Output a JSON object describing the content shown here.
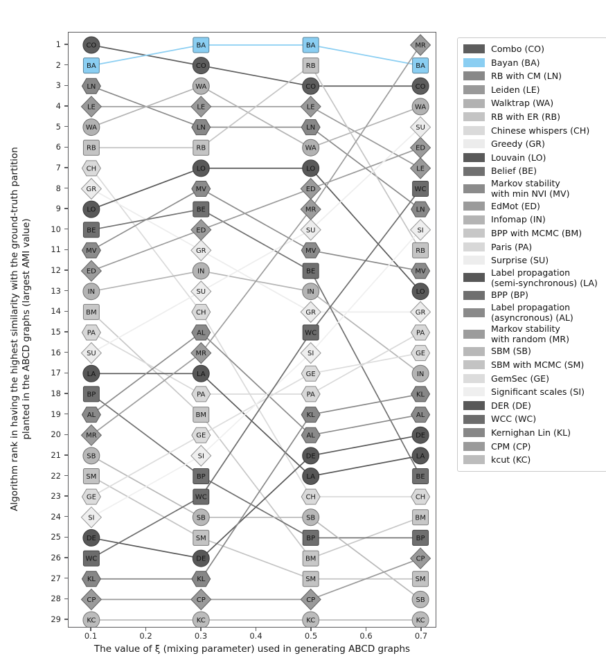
{
  "axes": {
    "xlabel": "The value of ξ (mixing parameter) used in generating ABCD graphs",
    "ylabel_line1": "Algorithm rank in having the highest similarity with the ground-truth partition",
    "ylabel_line2": "planted in the ABCD graphs (largest AMI value)",
    "xticks": [
      "0.1",
      "0.2",
      "0.3",
      "0.4",
      "0.5",
      "0.6",
      "0.7"
    ],
    "yticks": [
      "1",
      "2",
      "3",
      "4",
      "5",
      "6",
      "7",
      "8",
      "9",
      "10",
      "11",
      "12",
      "13",
      "14",
      "15",
      "16",
      "17",
      "18",
      "19",
      "20",
      "21",
      "22",
      "23",
      "24",
      "25",
      "26",
      "27",
      "28",
      "29"
    ]
  },
  "chart_data": {
    "type": "line",
    "subtype": "bump-rank-chart",
    "title": "",
    "x": [
      0.1,
      0.3,
      0.5,
      0.7
    ],
    "y_axis": "rank (1 at top, 29 at bottom, inverted axis)",
    "ylim": [
      1,
      29
    ],
    "grid": false,
    "legend_position": "outside right",
    "marker_text_color": "#101010",
    "highlight_color": "#8acef2",
    "series": [
      {
        "name": "Combo (CO)",
        "code": "CO",
        "shape": "circle",
        "color": "#5d5d5d",
        "ranks": [
          1,
          2,
          3,
          3
        ]
      },
      {
        "name": "Bayan (BA)",
        "code": "BA",
        "shape": "square",
        "color": "#8acef2",
        "ranks": [
          2,
          1,
          1,
          2
        ]
      },
      {
        "name": "RB with CM (LN)",
        "code": "LN",
        "shape": "hexagon",
        "color": "#888888",
        "ranks": [
          3,
          5,
          5,
          9
        ]
      },
      {
        "name": "Leiden (LE)",
        "code": "LE",
        "shape": "diamond",
        "color": "#999999",
        "ranks": [
          4,
          4,
          4,
          7
        ]
      },
      {
        "name": "Walktrap (WA)",
        "code": "WA",
        "shape": "circle",
        "color": "#b2b2b2",
        "ranks": [
          5,
          3,
          6,
          4
        ]
      },
      {
        "name": "RB with ER (RB)",
        "code": "RB",
        "shape": "square",
        "color": "#c4c4c4",
        "ranks": [
          6,
          6,
          2,
          11
        ]
      },
      {
        "name": "Chinese whispers (CH)",
        "code": "CH",
        "shape": "hexagon",
        "color": "#dadada",
        "ranks": [
          7,
          14,
          23,
          23
        ]
      },
      {
        "name": "Greedy (GR)",
        "code": "GR",
        "shape": "diamond",
        "color": "#ececec",
        "ranks": [
          8,
          11,
          14,
          14
        ]
      },
      {
        "name": "Louvain (LO)",
        "code": "LO",
        "shape": "circle",
        "color": "#595959",
        "ranks": [
          9,
          7,
          7,
          13
        ]
      },
      {
        "name": "Belief (BE)",
        "code": "BE",
        "shape": "square",
        "color": "#707070",
        "ranks": [
          10,
          9,
          12,
          22
        ]
      },
      {
        "name": "Markov stability\nwith min NVI (MV)",
        "code": "MV",
        "shape": "hexagon",
        "color": "#8b8b8b",
        "ranks": [
          11,
          8,
          11,
          12
        ]
      },
      {
        "name": "EdMot (ED)",
        "code": "ED",
        "shape": "diamond",
        "color": "#9b9b9b",
        "ranks": [
          12,
          10,
          8,
          6
        ]
      },
      {
        "name": "Infomap (IN)",
        "code": "IN",
        "shape": "circle",
        "color": "#b4b4b4",
        "ranks": [
          13,
          12,
          13,
          17
        ]
      },
      {
        "name": "BPP with MCMC (BM)",
        "code": "BM",
        "shape": "square",
        "color": "#c7c7c7",
        "ranks": [
          14,
          19,
          26,
          24
        ]
      },
      {
        "name": "Paris (PA)",
        "code": "PA",
        "shape": "hexagon",
        "color": "#d8d8d8",
        "ranks": [
          15,
          18,
          18,
          15
        ]
      },
      {
        "name": "Surprise (SU)",
        "code": "SU",
        "shape": "diamond",
        "color": "#ededed",
        "ranks": [
          16,
          13,
          10,
          5
        ]
      },
      {
        "name": "Label propagation\n(semi-synchronous) (LA)",
        "code": "LA",
        "shape": "circle",
        "color": "#575757",
        "ranks": [
          17,
          17,
          22,
          21
        ]
      },
      {
        "name": "BPP (BP)",
        "code": "BP",
        "shape": "square",
        "color": "#6f6f6f",
        "ranks": [
          18,
          22,
          25,
          25
        ]
      },
      {
        "name": "Label propagation\n(asyncronous) (AL)",
        "code": "AL",
        "shape": "hexagon",
        "color": "#8a8a8a",
        "ranks": [
          19,
          15,
          20,
          19
        ]
      },
      {
        "name": "Markov stability\nwith random (MR)",
        "code": "MR",
        "shape": "diamond",
        "color": "#9c9c9c",
        "ranks": [
          20,
          16,
          9,
          1
        ]
      },
      {
        "name": "SBM (SB)",
        "code": "SB",
        "shape": "circle",
        "color": "#b8b8b8",
        "ranks": [
          21,
          24,
          24,
          28
        ]
      },
      {
        "name": "SBM with MCMC (SM)",
        "code": "SM",
        "shape": "square",
        "color": "#c3c3c3",
        "ranks": [
          22,
          25,
          27,
          27
        ]
      },
      {
        "name": "GemSec (GE)",
        "code": "GE",
        "shape": "hexagon",
        "color": "#dcdcdc",
        "ranks": [
          23,
          20,
          17,
          16
        ]
      },
      {
        "name": "Significant scales (SI)",
        "code": "SI",
        "shape": "diamond",
        "color": "#efefef",
        "ranks": [
          24,
          21,
          16,
          10
        ]
      },
      {
        "name": "DER (DE)",
        "code": "DE",
        "shape": "circle",
        "color": "#585858",
        "ranks": [
          25,
          26,
          21,
          20
        ]
      },
      {
        "name": "WCC (WC)",
        "code": "WC",
        "shape": "square",
        "color": "#6c6c6c",
        "ranks": [
          26,
          23,
          15,
          8
        ]
      },
      {
        "name": "Kernighan Lin (KL)",
        "code": "KL",
        "shape": "hexagon",
        "color": "#878787",
        "ranks": [
          27,
          27,
          19,
          18
        ]
      },
      {
        "name": "CPM (CP)",
        "code": "CP",
        "shape": "diamond",
        "color": "#9a9a9a",
        "ranks": [
          28,
          28,
          28,
          26
        ]
      },
      {
        "name": "kcut (KC)",
        "code": "KC",
        "shape": "circle",
        "color": "#bcbcbc",
        "ranks": [
          29,
          29,
          29,
          29
        ]
      }
    ]
  }
}
